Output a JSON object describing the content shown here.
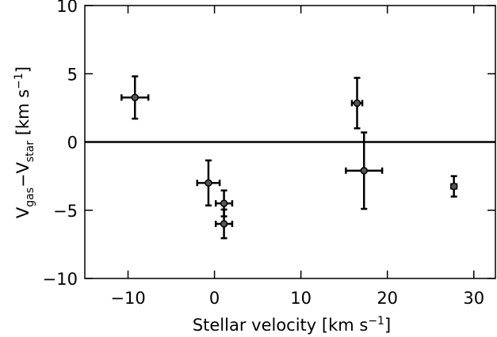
{
  "chart_data": {
    "type": "errorbar",
    "x_label": [
      "Stellar velocity [km s",
      "−1",
      "]"
    ],
    "y_label": [
      "V",
      "gas",
      "−V",
      "star",
      " [km s",
      "−1",
      "]"
    ],
    "x": [
      -9.2,
      -0.7,
      1.1,
      1.1,
      16.5,
      17.3,
      27.7
    ],
    "values": [
      3.26,
      -3.0,
      -4.5,
      -6.0,
      2.85,
      -2.1,
      -3.25
    ],
    "x_err": [
      1.55,
      1.3,
      0.95,
      0.95,
      0.6,
      2.1,
      0.3
    ],
    "y_err": [
      1.55,
      1.65,
      0.95,
      1.05,
      1.85,
      2.8,
      0.75
    ],
    "color": "#555555",
    "hline": 0,
    "xlim": [
      -15,
      32.5
    ],
    "ylim": [
      -10,
      10
    ],
    "xticks": [
      {
        "value": -10,
        "label": "−10"
      },
      0,
      10,
      20,
      30
    ],
    "yticks": [
      {
        "value": -10,
        "label": "−10"
      },
      {
        "value": -5,
        "label": "−5"
      },
      0,
      5,
      10
    ]
  }
}
